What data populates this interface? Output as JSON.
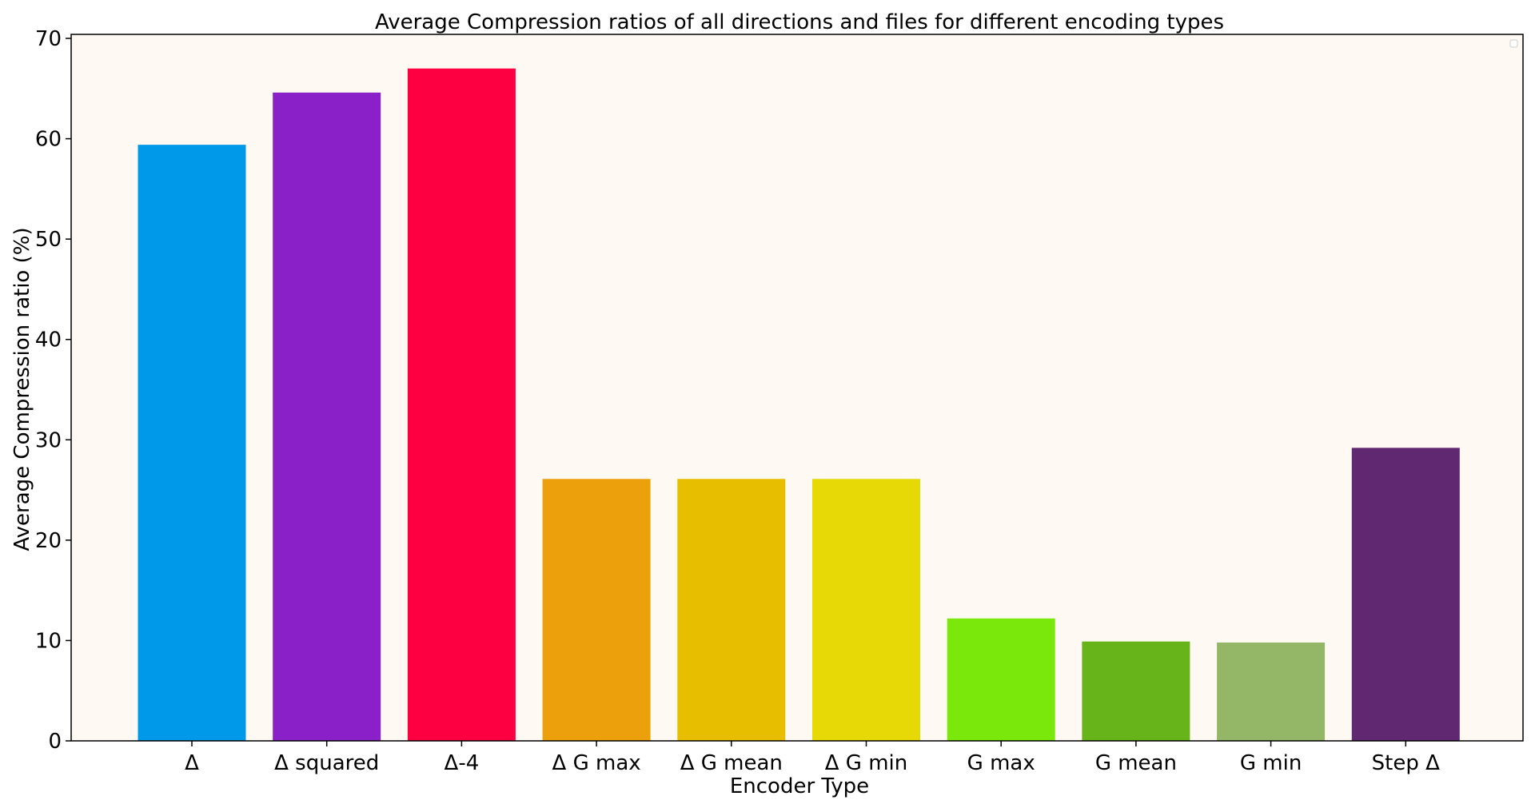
{
  "chart_data": {
    "type": "bar",
    "title": "Average Compression ratios of all directions and files for different encoding types",
    "xlabel": "Encoder Type",
    "ylabel": "Average Compression ratio (%)",
    "categories": [
      "Δ",
      "Δ squared",
      "Δ-4",
      "Δ G max",
      "Δ G mean",
      "Δ G min",
      "G max",
      "G mean",
      "G min",
      "Step Δ"
    ],
    "values": [
      59.4,
      64.6,
      67.0,
      26.1,
      26.1,
      26.1,
      12.2,
      9.9,
      9.8,
      29.2
    ],
    "bar_colors": [
      "#0099ea",
      "#8a20c8",
      "#fc0042",
      "#eca00b",
      "#e7be00",
      "#e6d906",
      "#79e80a",
      "#66b31a",
      "#94b767",
      "#612872"
    ],
    "ylim": [
      0,
      70.4
    ],
    "yticks": [
      0,
      10,
      20,
      30,
      40,
      50,
      60,
      70
    ],
    "plot_background": "#fefaf3",
    "grid": false,
    "legend": {
      "placement": "top-right",
      "entries": []
    }
  }
}
